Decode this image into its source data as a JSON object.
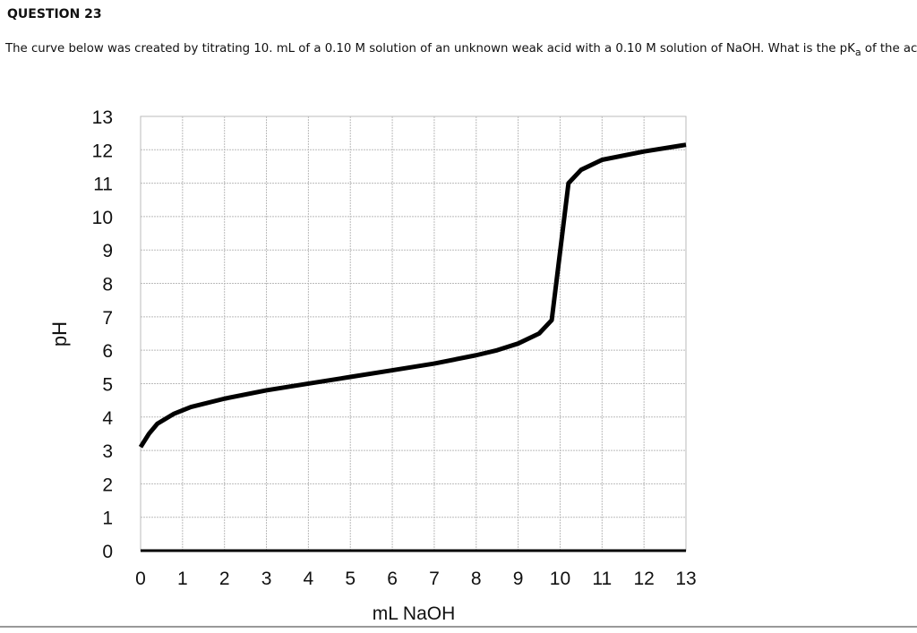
{
  "question": {
    "title": "QUESTION 23",
    "text": [
      "The curve below was created by titrating 10. mL of a 0.10 M solution of an unknown weak acid  with a 0.10 M solution of NaOH. What is the pK",
      "a",
      " of the acid?"
    ]
  },
  "chart_data": {
    "type": "line",
    "x_label": "mL NaOH",
    "y_label": "pH",
    "x": [
      0,
      0.2,
      0.4,
      0.8,
      1.2,
      2,
      3,
      4,
      5,
      6,
      7,
      8,
      8.5,
      9,
      9.5,
      9.8,
      10.2,
      10.5,
      11,
      12,
      13
    ],
    "series": [
      {
        "color": "#000000",
        "values": [
          3.1,
          3.5,
          3.8,
          4.1,
          4.3,
          4.55,
          4.8,
          5.0,
          5.2,
          5.4,
          5.6,
          5.85,
          6.0,
          6.2,
          6.5,
          6.9,
          11.0,
          11.4,
          11.7,
          11.95,
          12.15
        ]
      }
    ],
    "xlim": [
      0,
      13
    ],
    "ylim": [
      0,
      13
    ],
    "xticks": [
      0,
      1,
      2,
      3,
      4,
      5,
      6,
      7,
      8,
      9,
      10,
      11,
      12,
      13
    ],
    "yticks": [
      0,
      1,
      2,
      3,
      4,
      5,
      6,
      7,
      8,
      9,
      10,
      11,
      12,
      13
    ],
    "grid": true
  }
}
